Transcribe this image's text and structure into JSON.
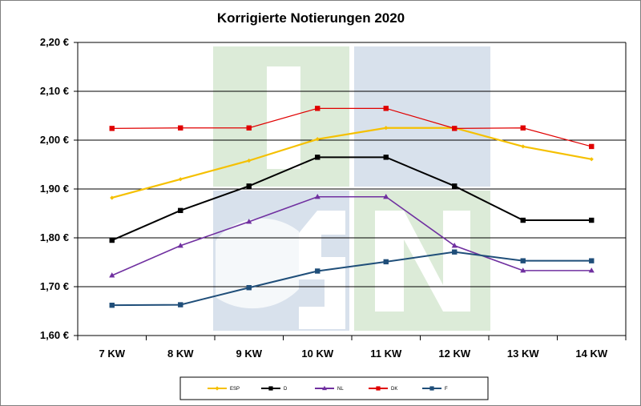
{
  "chart_data": {
    "type": "line",
    "title": "Korrigierte Notierungen 2020",
    "xlabel": "",
    "ylabel": "",
    "categories": [
      "7 KW",
      "8 KW",
      "9 KW",
      "10 KW",
      "11 KW",
      "12 KW",
      "13 KW",
      "14 KW"
    ],
    "ylim": [
      1.6,
      2.2
    ],
    "yticks": [
      1.6,
      1.7,
      1.8,
      1.9,
      2.0,
      2.1,
      2.2
    ],
    "ytick_labels": [
      "1,60 €",
      "1,70 €",
      "1,80 €",
      "1,90 €",
      "2,00 €",
      "2,10 €",
      "2,20 €"
    ],
    "grid": "horizontal",
    "legend_position": "bottom",
    "series": [
      {
        "name": "ESP",
        "color": "#f5c000",
        "marker": "diamond",
        "values": [
          1.882,
          1.92,
          1.958,
          2.002,
          2.025,
          2.025,
          1.987,
          1.961
        ]
      },
      {
        "name": "D",
        "color": "#000000",
        "marker": "square",
        "values": [
          1.795,
          1.856,
          1.906,
          1.965,
          1.965,
          1.906,
          1.836,
          1.836
        ]
      },
      {
        "name": "NL",
        "color": "#7030a0",
        "marker": "triangle",
        "values": [
          1.723,
          1.784,
          1.833,
          1.884,
          1.884,
          1.784,
          1.733,
          1.733
        ]
      },
      {
        "name": "DK",
        "color": "#e00000",
        "marker": "square",
        "values": [
          2.024,
          2.025,
          2.025,
          2.065,
          2.065,
          2.024,
          2.025,
          1.987
        ]
      },
      {
        "name": "F",
        "color": "#1f4e79",
        "marker": "square",
        "values": [
          1.662,
          1.663,
          1.698,
          1.732,
          1.751,
          1.771,
          1.753,
          1.753
        ]
      }
    ]
  },
  "colors": {
    "grid": "#000000",
    "watermark_green": "#dcebd8",
    "watermark_blue": "#d8e1ec",
    "watermark_letter": "#ffffff",
    "frame": "#7f7f7f"
  }
}
